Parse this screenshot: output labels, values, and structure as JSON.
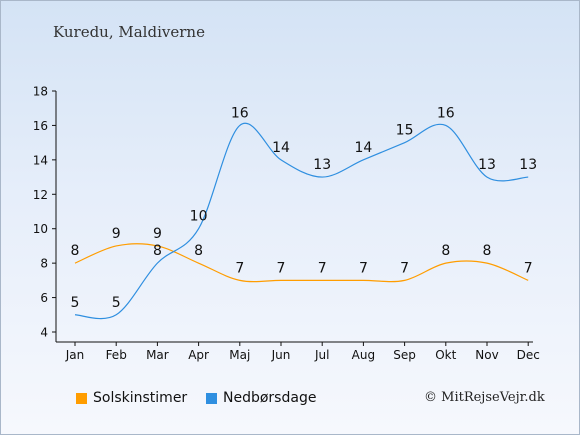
{
  "title": "Kuredu, Maldiverne",
  "copyright": "© MitRejseVejr.dk",
  "chart_data": {
    "type": "line",
    "categories": [
      "Jan",
      "Feb",
      "Mar",
      "Apr",
      "Maj",
      "Jun",
      "Jul",
      "Aug",
      "Sep",
      "Okt",
      "Nov",
      "Dec"
    ],
    "ylim": [
      4,
      18
    ],
    "yticks": [
      4,
      6,
      8,
      10,
      12,
      14,
      16,
      18
    ],
    "grid": false,
    "legend_placement": "bottom-left",
    "series": [
      {
        "name": "Solskinstimer",
        "color": "#ff9d00",
        "values": [
          8,
          9,
          9,
          8,
          7,
          7,
          7,
          7,
          7,
          8,
          8,
          7
        ]
      },
      {
        "name": "Nedbørsdage",
        "color": "#2f8fe0",
        "values": [
          5,
          5,
          8,
          10,
          16,
          14,
          13,
          14,
          15,
          16,
          13,
          13
        ]
      }
    ]
  }
}
